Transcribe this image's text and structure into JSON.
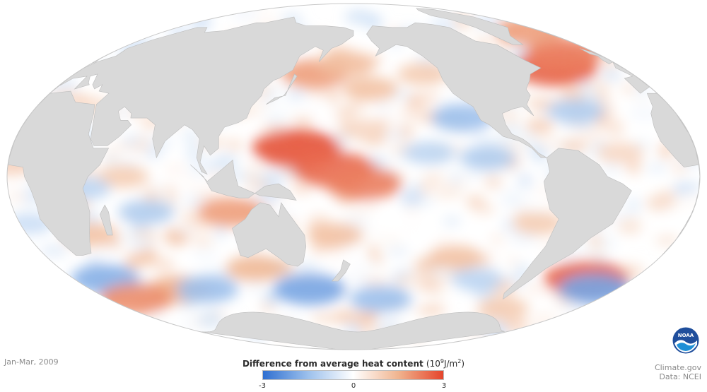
{
  "period": "Jan-Mar, 2009",
  "legend": {
    "title": "Difference from average heat content",
    "unit_prefix": "(10",
    "unit_exp1": "9",
    "unit_mid": "J/m",
    "unit_exp2": "2",
    "unit_suffix": ")",
    "min_label": "-3",
    "mid_label": "0",
    "max_label": "3",
    "colors": [
      "#2f6fd1",
      "#9cc0ec",
      "#ffffff",
      "#f0b48f",
      "#e5442b"
    ]
  },
  "credits": {
    "site": "Climate.gov",
    "data": "Data: NCEI"
  },
  "logo": {
    "text": "NOAA",
    "icon": "noaa-logo-icon"
  },
  "map": {
    "projection": "Mollweide",
    "land_color": "#d9d9d9",
    "ocean_neutral": "#ffffff",
    "anomalies": [
      {
        "lon": 150,
        "lat": 12,
        "value": 2.8
      },
      {
        "lon": 170,
        "lat": 3,
        "value": 2.5
      },
      {
        "lon": -175,
        "lat": -3,
        "value": 2.2
      },
      {
        "lon": 155,
        "lat": 45,
        "value": 1.8
      },
      {
        "lon": -170,
        "lat": 38,
        "value": 1.2
      },
      {
        "lon": -45,
        "lat": 48,
        "value": 2.6
      },
      {
        "lon": -25,
        "lat": 55,
        "value": 2.2
      },
      {
        "lon": -10,
        "lat": 68,
        "value": 1.8
      },
      {
        "lon": -120,
        "lat": 25,
        "value": -1.5
      },
      {
        "lon": -110,
        "lat": 8,
        "value": -1.2
      },
      {
        "lon": -140,
        "lat": 10,
        "value": -1.0
      },
      {
        "lon": -55,
        "lat": 28,
        "value": -1.2
      },
      {
        "lon": -30,
        "lat": -45,
        "value": 2.6
      },
      {
        "lon": -15,
        "lat": -50,
        "value": -2.0
      },
      {
        "lon": 20,
        "lat": -45,
        "value": -1.8
      },
      {
        "lon": 60,
        "lat": -50,
        "value": 1.5
      },
      {
        "lon": 80,
        "lat": -50,
        "value": -1.5
      },
      {
        "lon": 150,
        "lat": -50,
        "value": -2.0
      },
      {
        "lon": -160,
        "lat": -55,
        "value": -1.5
      },
      {
        "lon": -120,
        "lat": -35,
        "value": 1.2
      },
      {
        "lon": 20,
        "lat": -55,
        "value": 2.0
      },
      {
        "lon": 115,
        "lat": -15,
        "value": 1.8
      },
      {
        "lon": 70,
        "lat": -15,
        "value": -1.2
      },
      {
        "lon": 60,
        "lat": 0,
        "value": 1.0
      },
      {
        "lon": 35,
        "lat": -25,
        "value": 1.2
      },
      {
        "lon": 5,
        "lat": -20,
        "value": -0.8
      },
      {
        "lon": -80,
        "lat": -20,
        "value": 1.0
      },
      {
        "lon": -100,
        "lat": -45,
        "value": -1.0
      },
      {
        "lon": 170,
        "lat": -25,
        "value": 1.2
      },
      {
        "lon": -175,
        "lat": 20,
        "value": 0.8
      },
      {
        "lon": 175,
        "lat": 50,
        "value": 1.3
      },
      {
        "lon": -60,
        "lat": -60,
        "value": 1.0
      },
      {
        "lon": 120,
        "lat": -40,
        "value": 1.4
      },
      {
        "lon": 0,
        "lat": 5,
        "value": 0.9
      },
      {
        "lon": -40,
        "lat": 10,
        "value": 0.8
      },
      {
        "lon": -135,
        "lat": 45,
        "value": 1.0
      },
      {
        "lon": 40,
        "lat": -5,
        "value": -1.0
      }
    ]
  }
}
